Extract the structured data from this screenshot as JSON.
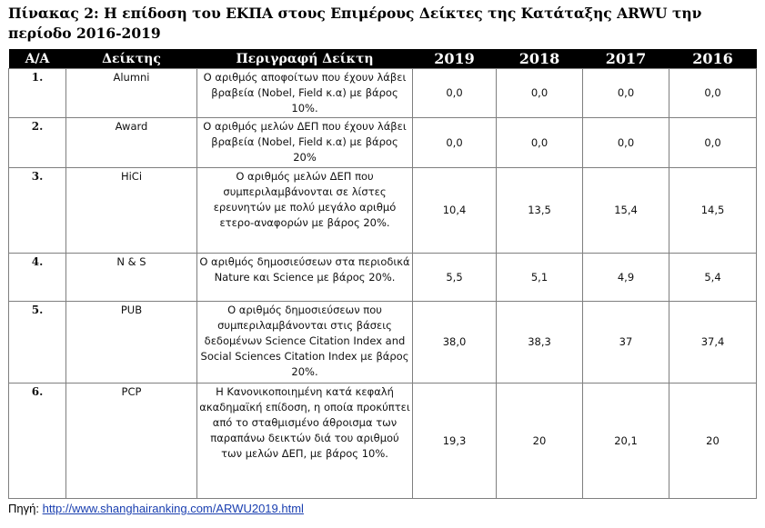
{
  "title": "Πίνακας 2: Η επίδοση του ΕΚΠΑ στους Επιμέρους Δείκτες της Κατάταξης  ARWU την περίοδο 2016-2019",
  "table": {
    "headers": [
      "Α/Α",
      "Δείκτης",
      "Περιγραφή Δείκτη",
      "2019",
      "2018",
      "2017",
      "2016"
    ],
    "rows": [
      {
        "aa": "1.",
        "indicator": "Alumni",
        "description": "Ο αριθμός αποφοίτων που έχουν λάβει βραβεία (Nobel, Field κ.α) με βάρος 10%.",
        "v2019": "0,0",
        "v2018": "0,0",
        "v2017": "0,0",
        "v2016": "0,0"
      },
      {
        "aa": "2.",
        "indicator": "Award",
        "description": "Ο αριθμός μελών ΔΕΠ που έχουν λάβει βραβεία (Nobel, Field κ.α) με βάρος 20%",
        "v2019": "0,0",
        "v2018": "0,0",
        "v2017": "0,0",
        "v2016": "0,0"
      },
      {
        "aa": "3.",
        "indicator": "HiCi",
        "description": "Ο αριθμός μελών ΔΕΠ που συμπεριλαμβάνονται σε λίστες ερευνητών με πολύ μεγάλο αριθμό ετερο-αναφορών με βάρος 20%.",
        "v2019": "10,4",
        "v2018": "13,5",
        "v2017": "15,4",
        "v2016": "14,5"
      },
      {
        "aa": "4.",
        "indicator": "N & S",
        "description": "Ο αριθμός δημοσιεύσεων στα περιοδικά Nature και Science με βάρος 20%.",
        "v2019": "5,5",
        "v2018": "5,1",
        "v2017": "4,9",
        "v2016": "5,4"
      },
      {
        "aa": "5.",
        "indicator": "PUB",
        "description": "Ο αριθμός δημοσιεύσεων που συμπεριλαμβάνονται στις βάσεις δεδομένων Science Citation Index and Social Sciences Citation Index με βάρος 20%.",
        "v2019": "38,0",
        "v2018": "38,3",
        "v2017": "37",
        "v2016": "37,4"
      },
      {
        "aa": "6.",
        "indicator": "PCP",
        "description": "Η Κανονικοποιημένη κατά κεφαλή ακαδημαϊκή επίδοση, η οποία προκύπτει από το σταθμισμένο άθροισμα των παραπάνω δεικτών διά του αριθμού των μελών ΔΕΠ, με βάρος 10%.",
        "v2019": "19,3",
        "v2018": "20",
        "v2017": "20,1",
        "v2016": "20"
      }
    ]
  },
  "source": {
    "label": "Πηγή:",
    "link_text": "http://www.shanghairanking.com/ARWU2019.html"
  }
}
